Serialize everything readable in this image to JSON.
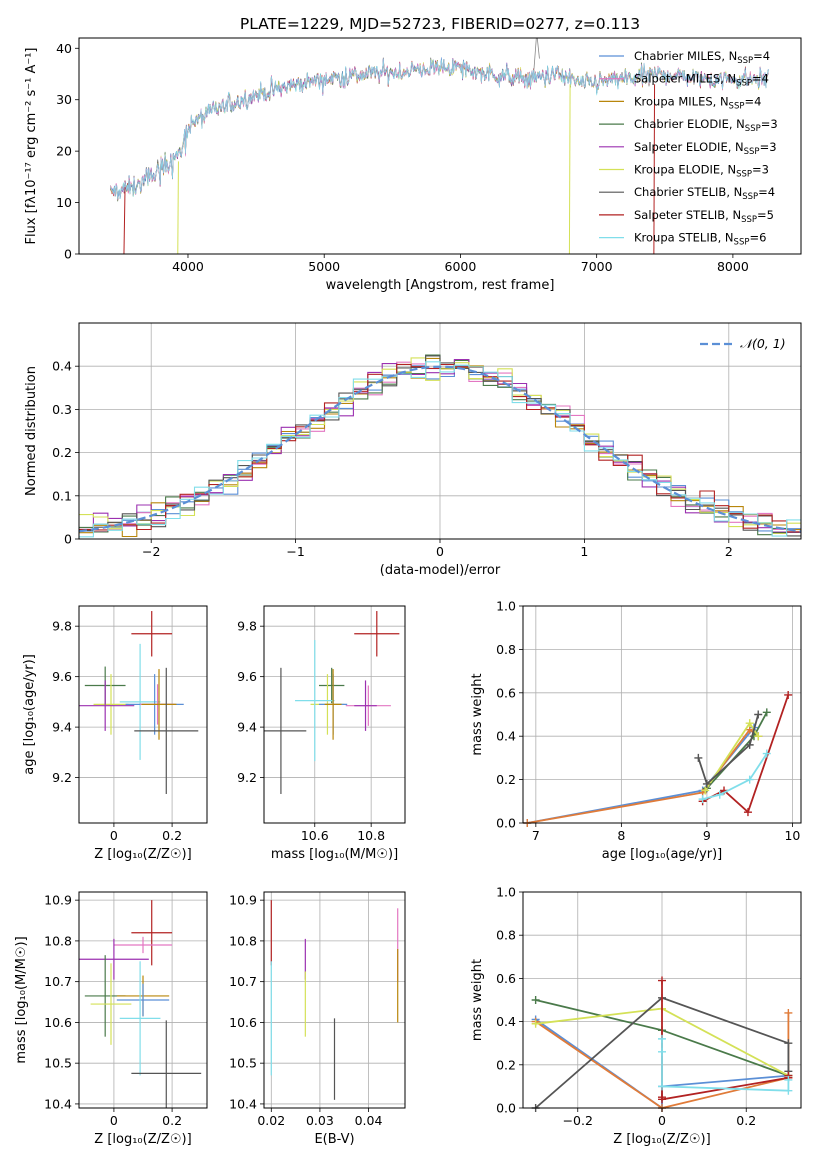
{
  "title": "PLATE=1229, MJD=52723, FIBERID=0277, z=0.113",
  "colors": {
    "Chabrier MILES": "#5b8fd6",
    "Salpeter MILES": "#e377c2",
    "Kroupa MILES": "#b8860b",
    "Chabrier ELODIE": "#4a7a4a",
    "Salpeter ELODIE": "#9b30b0",
    "Kroupa ELODIE": "#d4e157",
    "Chabrier STELIB": "#555555",
    "Salpeter STELIB": "#b22222",
    "Kroupa STELIB": "#80deea",
    "Kroupa MILES line": "#e07b39",
    "normal": "#5b8fd6"
  },
  "chart_data": [
    {
      "id": "spectrum",
      "type": "line",
      "xlabel": "wavelength [Angstrom, rest frame]",
      "ylabel": "Flux [fλ10⁻¹⁷ erg cm⁻² s⁻¹ A⁻¹]",
      "xlim": [
        3200,
        8500
      ],
      "ylim": [
        0,
        42
      ],
      "xticks": [
        4000,
        5000,
        6000,
        7000,
        8000
      ],
      "yticks": [
        0,
        10,
        20,
        30,
        40
      ],
      "legend_loc": "right",
      "legend": [
        {
          "name": "Chabrier MILES, N",
          "sub": "SSP",
          "n": "=4"
        },
        {
          "name": "Salpeter MILES, N",
          "sub": "SSP",
          "n": "=4"
        },
        {
          "name": "Kroupa MILES, N",
          "sub": "SSP",
          "n": "=4"
        },
        {
          "name": "Chabrier ELODIE, N",
          "sub": "SSP",
          "n": "=3"
        },
        {
          "name": "Salpeter ELODIE, N",
          "sub": "SSP",
          "n": "=3"
        },
        {
          "name": "Kroupa ELODIE, N",
          "sub": "SSP",
          "n": "=3"
        },
        {
          "name": "Chabrier STELIB, N",
          "sub": "SSP",
          "n": "=4"
        },
        {
          "name": "Salpeter STELIB, N",
          "sub": "SSP",
          "n": "=5"
        },
        {
          "name": "Kroupa STELIB, N",
          "sub": "SSP",
          "n": "=6"
        }
      ],
      "x_range": [
        3430,
        8260
      ],
      "envelope": {
        "x": [
          3430,
          3600,
          3800,
          3950,
          4000,
          4200,
          4500,
          4800,
          5000,
          5300,
          5600,
          5900,
          6200,
          6500,
          6700,
          6900,
          7200,
          7500,
          7800,
          8000,
          8260
        ],
        "y": [
          12,
          13,
          17,
          20,
          25,
          28,
          31,
          33,
          34,
          35,
          35.5,
          36.5,
          35,
          34,
          35,
          33,
          34,
          35,
          34,
          34,
          34
        ]
      }
    },
    {
      "id": "residuals",
      "type": "histogram",
      "xlabel": "(data-model)/error",
      "ylabel": "Normed distribution",
      "xlim": [
        -2.5,
        2.5
      ],
      "ylim": [
        0,
        0.5
      ],
      "xticks": [
        -2,
        -1,
        0,
        1,
        2
      ],
      "yticks": [
        0.0,
        0.1,
        0.2,
        0.3,
        0.4
      ],
      "legend": "𝒩(0, 1)",
      "legend_loc": "top-right",
      "bin_width": 0.1
    },
    {
      "id": "age-vs-Z",
      "type": "scatter",
      "xlabel": "Z [log₁₀(Z/Z☉)]",
      "ylabel": "age  [log₁₀(age/yr)]",
      "xlim": [
        -0.12,
        0.32
      ],
      "ylim": [
        9.02,
        9.88
      ],
      "xticks": [
        0.0,
        0.2
      ],
      "yticks": [
        9.2,
        9.4,
        9.6,
        9.8
      ],
      "points": [
        {
          "model": "Salpeter STELIB",
          "x": 0.13,
          "y": 9.77,
          "xerr": 0.07,
          "yerr": 0.09
        },
        {
          "model": "Chabrier ELODIE",
          "x": -0.03,
          "y": 9.565,
          "xerr": 0.07,
          "yerr": 0.075
        },
        {
          "model": "Kroupa ELODIE",
          "x": -0.01,
          "y": 9.49,
          "xerr": 0.06,
          "yerr": 0.12
        },
        {
          "model": "Kroupa STELIB",
          "x": 0.09,
          "y": 9.5,
          "xerr": 0.07,
          "yerr": 0.23
        },
        {
          "model": "Chabrier MILES",
          "x": 0.14,
          "y": 9.49,
          "xerr": 0.1,
          "yerr": 0.12
        },
        {
          "model": "Salpeter MILES",
          "x": 0.15,
          "y": 9.49,
          "xerr": 0.06,
          "yerr": 0.08
        },
        {
          "model": "Kroupa MILES",
          "x": 0.155,
          "y": 9.49,
          "xerr": 0.06,
          "yerr": 0.14
        },
        {
          "model": "Chabrier STELIB",
          "x": 0.18,
          "y": 9.385,
          "xerr": 0.11,
          "yerr": 0.25
        },
        {
          "model": "Salpeter ELODIE",
          "x": -0.03,
          "y": 9.485,
          "xerr": 0.1,
          "yerr": 0.1
        }
      ]
    },
    {
      "id": "age-vs-mass",
      "type": "scatter",
      "xlabel": "mass [log₁₀(M/M☉)]",
      "ylabel": "",
      "xlim": [
        10.42,
        10.92
      ],
      "ylim": [
        9.02,
        9.88
      ],
      "xticks": [
        10.4,
        10.6,
        10.8
      ],
      "yticks": [
        9.2,
        9.4,
        9.6,
        9.8
      ],
      "points": [
        {
          "model": "Salpeter STELIB",
          "x": 10.82,
          "y": 9.77,
          "xerr": 0.08,
          "yerr": 0.09
        },
        {
          "model": "Chabrier ELODIE",
          "x": 10.66,
          "y": 9.565,
          "xerr": 0.045,
          "yerr": 0.07
        },
        {
          "model": "Kroupa ELODIE",
          "x": 10.645,
          "y": 9.49,
          "xerr": 0.06,
          "yerr": 0.12
        },
        {
          "model": "Kroupa STELIB",
          "x": 10.6,
          "y": 9.505,
          "xerr": 0.07,
          "yerr": 0.24
        },
        {
          "model": "Chabrier MILES",
          "x": 10.665,
          "y": 9.49,
          "xerr": 0.05,
          "yerr": 0.12
        },
        {
          "model": "Salpeter MILES",
          "x": 10.79,
          "y": 9.485,
          "xerr": 0.08,
          "yerr": 0.08
        },
        {
          "model": "Kroupa MILES",
          "x": 10.665,
          "y": 9.49,
          "xerr": 0.03,
          "yerr": 0.14
        },
        {
          "model": "Chabrier STELIB",
          "x": 10.48,
          "y": 9.385,
          "xerr": 0.09,
          "yerr": 0.25
        },
        {
          "model": "Salpeter ELODIE",
          "x": 10.78,
          "y": 9.485,
          "xerr": 0.04,
          "yerr": 0.1
        }
      ]
    },
    {
      "id": "weight-vs-age",
      "type": "line",
      "xlabel": "age  [log₁₀(age/yr)]",
      "ylabel": "mass weight",
      "xlim": [
        6.85,
        10.1
      ],
      "ylim": [
        0,
        1
      ],
      "xticks": [
        7,
        8,
        9,
        10
      ],
      "yticks": [
        0.0,
        0.2,
        0.4,
        0.6,
        0.8,
        1.0
      ],
      "series": [
        {
          "model": "Chabrier MILES",
          "x": [
            6.9,
            8.95,
            9.55,
            9.6
          ],
          "y": [
            0.0,
            0.15,
            0.44,
            0.4
          ]
        },
        {
          "model": "Kroupa MILES",
          "x": [
            6.9,
            8.95,
            9.5,
            9.6
          ],
          "y": [
            0.0,
            0.14,
            0.43,
            0.4
          ]
        },
        {
          "model": "Chabrier ELODIE",
          "x": [
            9.0,
            9.55,
            9.7
          ],
          "y": [
            0.16,
            0.4,
            0.51
          ]
        },
        {
          "model": "Kroupa ELODIE",
          "x": [
            8.98,
            9.5,
            9.6
          ],
          "y": [
            0.15,
            0.46,
            0.4
          ]
        },
        {
          "model": "Chabrier STELIB",
          "x": [
            8.9,
            9.0,
            9.5,
            9.6
          ],
          "y": [
            0.3,
            0.18,
            0.36,
            0.5
          ]
        },
        {
          "model": "Salpeter STELIB",
          "x": [
            8.95,
            9.2,
            9.48,
            9.95
          ],
          "y": [
            0.1,
            0.15,
            0.05,
            0.59
          ]
        },
        {
          "model": "Kroupa STELIB",
          "x": [
            8.95,
            9.15,
            9.5,
            9.7
          ],
          "y": [
            0.11,
            0.13,
            0.2,
            0.32
          ]
        }
      ]
    },
    {
      "id": "mass-vs-Z",
      "type": "scatter",
      "xlabel": "Z [log₁₀(Z/Z☉)]",
      "ylabel": "mass [log₁₀(M/M☉)]",
      "xlim": [
        -0.12,
        0.32
      ],
      "ylim": [
        10.39,
        10.92
      ],
      "xticks": [
        0.0,
        0.2
      ],
      "yticks": [
        10.4,
        10.5,
        10.6,
        10.7,
        10.8,
        10.9
      ],
      "points": [
        {
          "model": "Salpeter STELIB",
          "x": 0.13,
          "y": 10.82,
          "xerr": 0.07,
          "yerr": 0.08
        },
        {
          "model": "Salpeter MILES",
          "x": 0.1,
          "y": 10.79,
          "xerr": 0.1,
          "yerr": 0.02
        },
        {
          "model": "Salpeter ELODIE",
          "x": 0.0,
          "y": 10.755,
          "xerr": 0.12,
          "yerr": 0.05
        },
        {
          "model": "Chabrier ELODIE",
          "x": -0.03,
          "y": 10.665,
          "xerr": 0.07,
          "yerr": 0.1
        },
        {
          "model": "Kroupa MILES",
          "x": 0.1,
          "y": 10.665,
          "xerr": 0.09,
          "yerr": 0.05
        },
        {
          "model": "Chabrier MILES",
          "x": 0.1,
          "y": 10.655,
          "xerr": 0.09,
          "yerr": 0.04
        },
        {
          "model": "Kroupa ELODIE",
          "x": -0.01,
          "y": 10.645,
          "xerr": 0.07,
          "yerr": 0.1
        },
        {
          "model": "Kroupa STELIB",
          "x": 0.09,
          "y": 10.61,
          "xerr": 0.07,
          "yerr": 0.14
        },
        {
          "model": "Chabrier STELIB",
          "x": 0.18,
          "y": 10.475,
          "xerr": 0.12,
          "yerr": 0.13
        }
      ]
    },
    {
      "id": "mass-vs-ebv",
      "type": "scatter",
      "xlabel": "E(B-V)",
      "ylabel": "",
      "xlim": [
        0.0185,
        0.0475
      ],
      "ylim": [
        10.39,
        10.92
      ],
      "xticks": [
        0.02,
        0.03,
        0.04
      ],
      "yticks": [
        10.4,
        10.5,
        10.6,
        10.7,
        10.8,
        10.9
      ],
      "points": [
        {
          "model": "Salpeter STELIB",
          "x": 0.02,
          "y": 10.82,
          "yerr": 0.08
        },
        {
          "model": "Kroupa STELIB",
          "x": 0.02,
          "y": 10.61,
          "yerr": 0.14
        },
        {
          "model": "Salpeter ELODIE",
          "x": 0.027,
          "y": 10.755,
          "yerr": 0.05
        },
        {
          "model": "Kroupa ELODIE",
          "x": 0.027,
          "y": 10.645,
          "yerr": 0.08
        },
        {
          "model": "Chabrier STELIB",
          "x": 0.033,
          "y": 10.51,
          "yerr": 0.1
        },
        {
          "model": "Salpeter MILES",
          "x": 0.046,
          "y": 10.79,
          "yerr": 0.09
        },
        {
          "model": "Kroupa MILES",
          "x": 0.046,
          "y": 10.69,
          "yerr": 0.09
        }
      ]
    },
    {
      "id": "weight-vs-Z",
      "type": "line",
      "xlabel": "Z [log₁₀(Z/Z☉)]",
      "ylabel": "mass weight",
      "xlim": [
        -0.33,
        0.33
      ],
      "ylim": [
        0,
        1
      ],
      "xticks": [
        -0.2,
        0.0,
        0.2
      ],
      "yticks": [
        0.0,
        0.2,
        0.4,
        0.6,
        0.8,
        1.0
      ],
      "series": [
        {
          "model": "Chabrier MILES",
          "x": [
            -0.3,
            0.0,
            0.0,
            0.3
          ],
          "y": [
            0.41,
            0.0,
            0.1,
            0.15
          ]
        },
        {
          "model": "Kroupa MILES",
          "x": [
            -0.3,
            0.0,
            0.3,
            0.3
          ],
          "y": [
            0.4,
            0.0,
            0.14,
            0.44
          ]
        },
        {
          "model": "Chabrier ELODIE",
          "x": [
            -0.3,
            0.0,
            0.3
          ],
          "y": [
            0.5,
            0.36,
            0.15
          ]
        },
        {
          "model": "Kroupa ELODIE",
          "x": [
            -0.3,
            0.0,
            0.3
          ],
          "y": [
            0.39,
            0.46,
            0.15
          ]
        },
        {
          "model": "Chabrier STELIB",
          "x": [
            -0.3,
            0.0,
            0.3,
            0.3
          ],
          "y": [
            0.0,
            0.51,
            0.3,
            0.17
          ]
        },
        {
          "model": "Salpeter STELIB",
          "x": [
            0.0,
            0.0,
            0.0,
            0.3,
            0.3
          ],
          "y": [
            0.59,
            0.05,
            0.04,
            0.14,
            0.15
          ]
        },
        {
          "model": "Kroupa STELIB",
          "x": [
            0.0,
            0.0,
            0.0,
            0.3,
            0.3
          ],
          "y": [
            0.32,
            0.26,
            0.1,
            0.08,
            0.13
          ]
        }
      ]
    }
  ]
}
